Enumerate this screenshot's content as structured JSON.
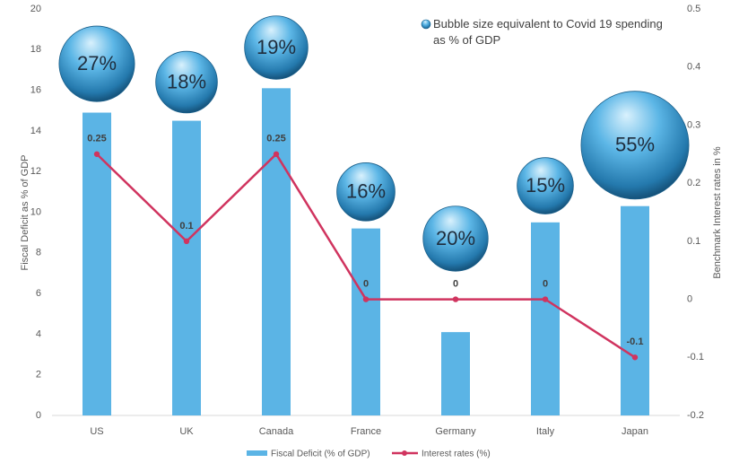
{
  "chart_data": {
    "type": "combo",
    "categories": [
      "US",
      "UK",
      "Canada",
      "France",
      "Germany",
      "Italy",
      "Japan"
    ],
    "series": [
      {
        "name": "Fiscal Deficit (% of GDP)",
        "type": "bar",
        "color": "#5bb4e5",
        "values": [
          14.9,
          14.5,
          16.1,
          9.2,
          4.1,
          9.5,
          10.3
        ]
      },
      {
        "name": "Interest rates (%)",
        "type": "line",
        "axis": "y2",
        "color": "#d0345f",
        "values": [
          0.25,
          0.1,
          0.25,
          0,
          0,
          0,
          -0.1
        ]
      },
      {
        "name": "Bubble size equivalent to Covid 19 spending as % of GDP",
        "type": "bubble",
        "color": "#3a9fd6",
        "values": [
          17.3,
          16.4,
          18.1,
          11.0,
          8.7,
          11.3,
          13.3
        ],
        "sizes": [
          27,
          18,
          19,
          16,
          20,
          15,
          55
        ],
        "size_labels": [
          "27%",
          "18%",
          "19%",
          "16%",
          "20%",
          "15%",
          "55%"
        ]
      }
    ],
    "ylabel": "Fiscal Deficit as % of GDP",
    "y2label": "Benchmark Interest rates in %",
    "ylim": [
      0,
      20
    ],
    "yticks": [
      0,
      2,
      4,
      6,
      8,
      10,
      12,
      14,
      16,
      18,
      20
    ],
    "y2lim": [
      -0.2,
      0.5
    ],
    "y2ticks": [
      -0.2,
      -0.1,
      0,
      0.1,
      0.2,
      0.3,
      0.4,
      0.5
    ],
    "grid": false
  }
}
